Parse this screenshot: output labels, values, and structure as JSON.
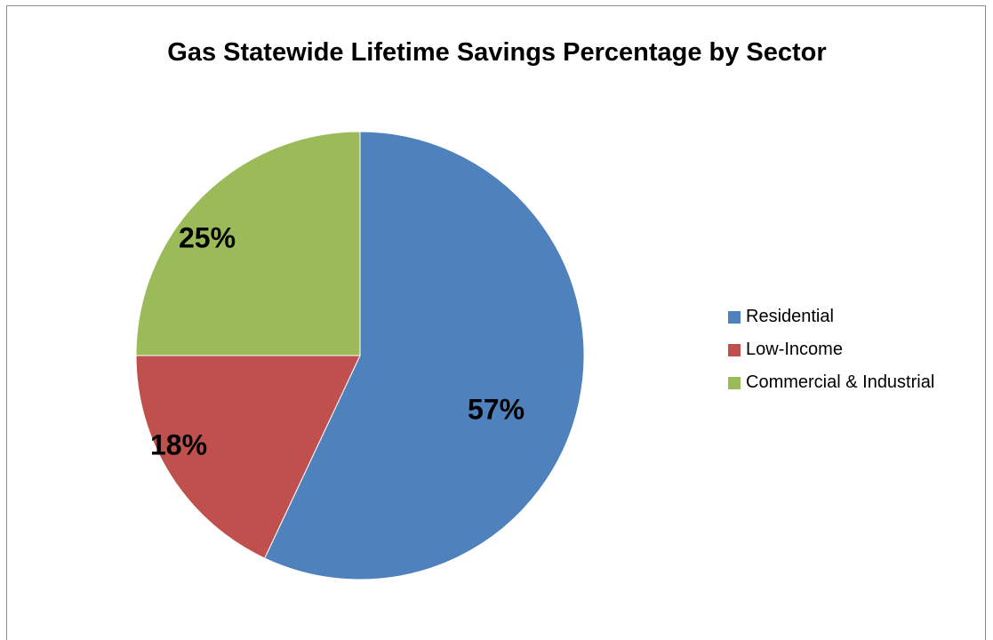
{
  "chart_data": {
    "type": "pie",
    "title": "Gas Statewide Lifetime Savings Percentage by Sector",
    "categories": [
      "Residential",
      "Low-Income",
      "Commercial & Industrial"
    ],
    "values": [
      57,
      18,
      25
    ],
    "labels": [
      "57%",
      "18%",
      "25%"
    ],
    "colors": [
      "#4F81BD",
      "#C0504D",
      "#9BBB59"
    ],
    "legend_position": "right",
    "start_angle": "12 o'clock",
    "direction": "clockwise"
  }
}
